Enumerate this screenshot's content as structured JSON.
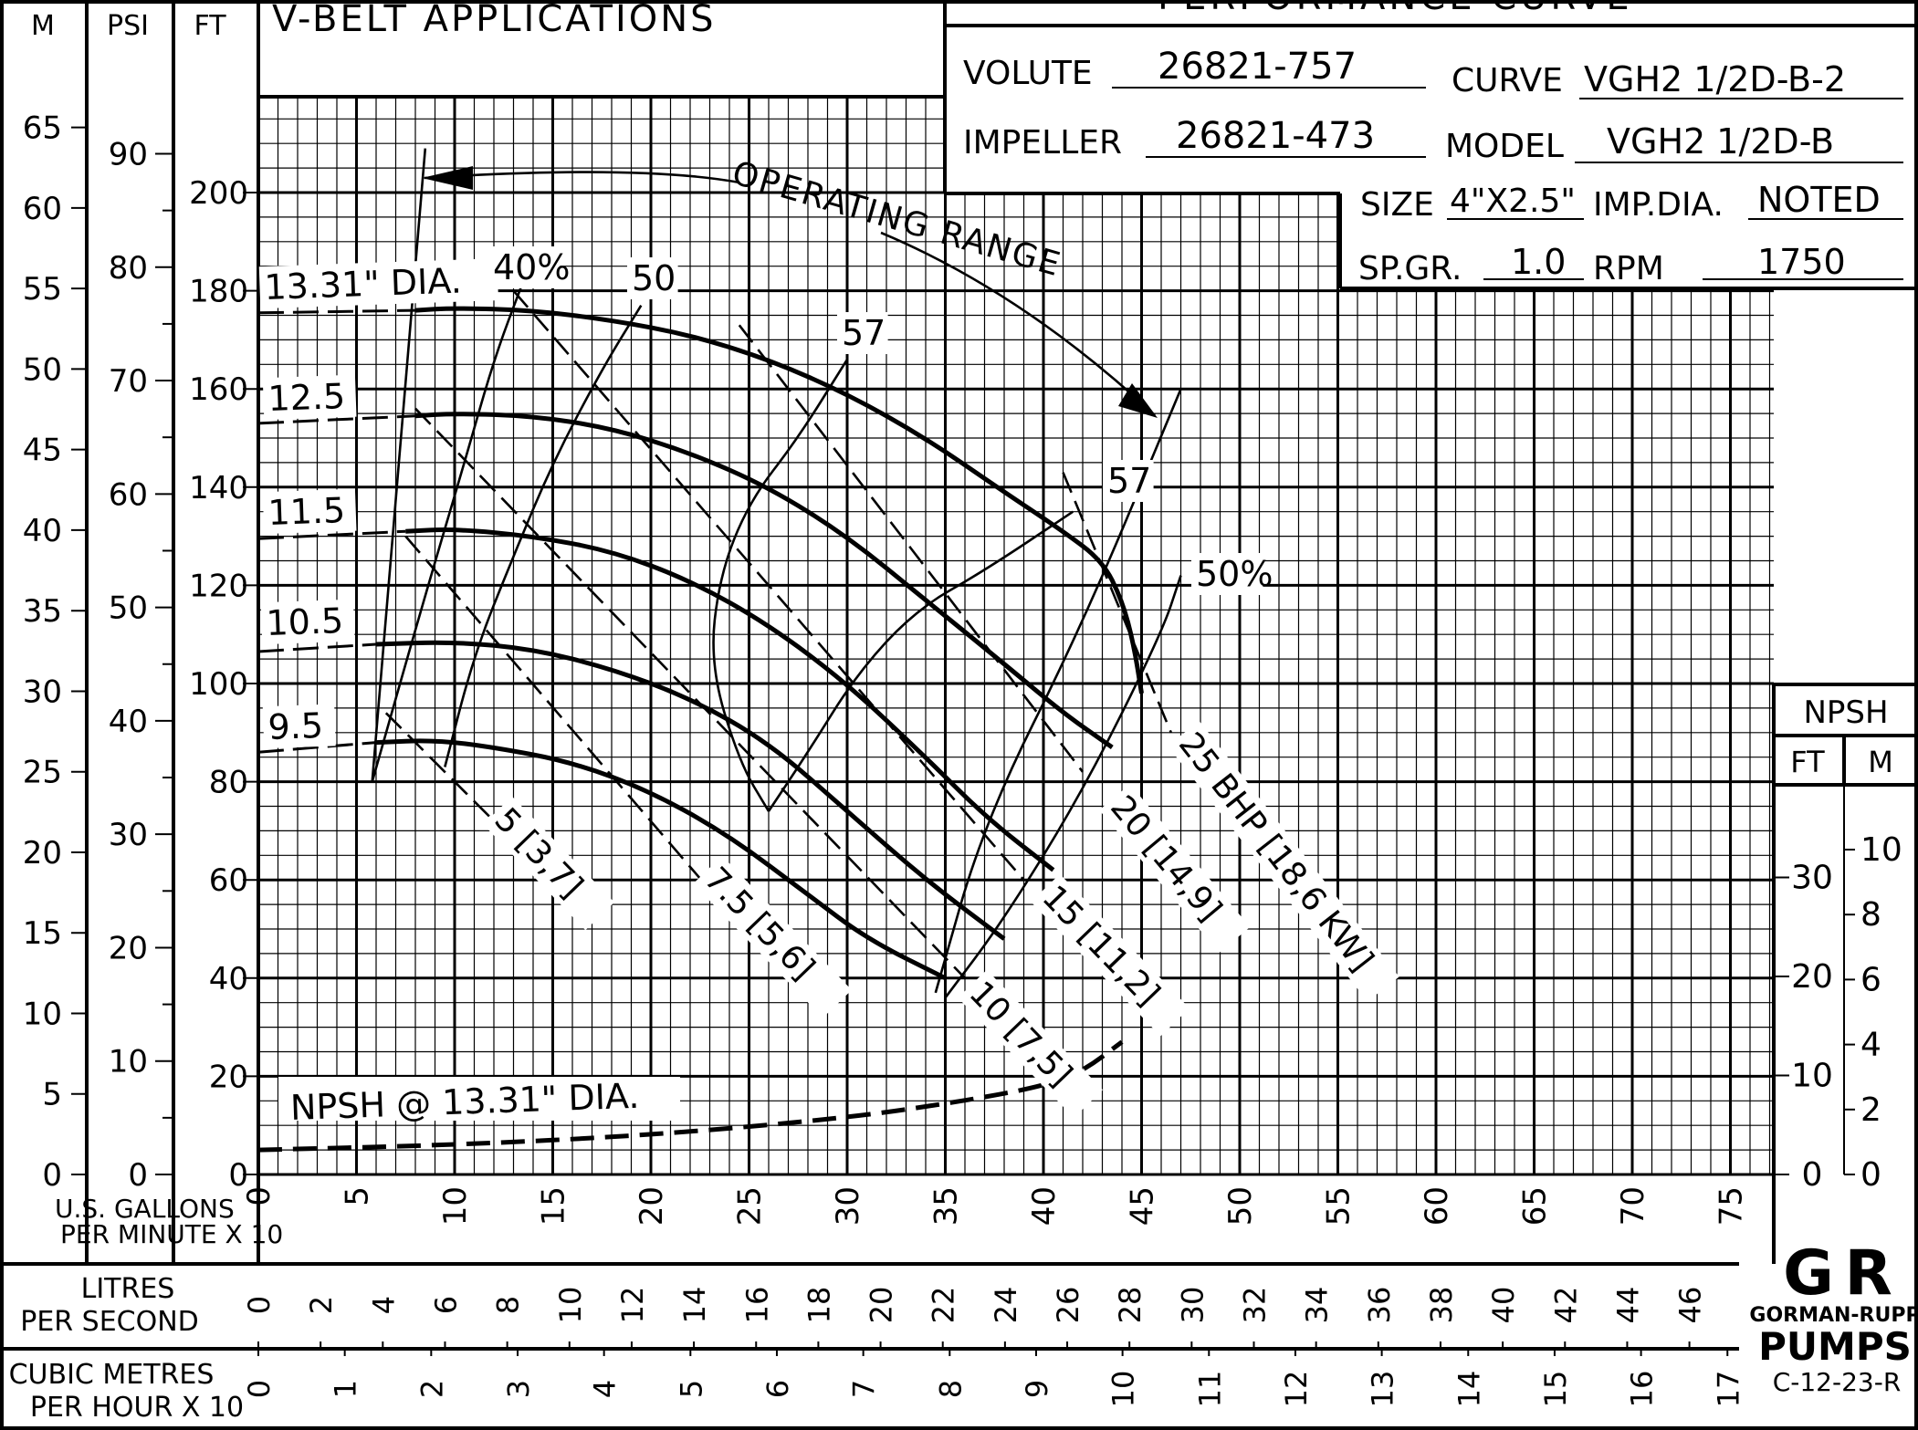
{
  "header": {
    "application": "V-BELT APPLICATIONS",
    "curve_title": "PERFORMANCE CURVE",
    "volute_label": "VOLUTE",
    "volute": "26821-757",
    "curve_label": "CURVE",
    "curve": "VGH2 1/2D-B-2",
    "impeller_label": "IMPELLER",
    "impeller": "26821-473",
    "model_label": "MODEL",
    "model": "VGH2 1/2D-B",
    "size_label": "SIZE",
    "size": "4\"X2.5\"",
    "impdia_label": "IMP.DIA.",
    "impdia": "NOTED",
    "spgr_label": "SP.GR.",
    "spgr": "1.0",
    "rpm_label": "RPM",
    "rpm": "1750"
  },
  "axes": {
    "m_label": "M",
    "psi_label": "PSI",
    "ft_label": "FT",
    "npsh_header": "NPSH",
    "npsh_ft_label": "FT",
    "npsh_m_label": "M",
    "gpm_label_1": "U.S. GALLONS",
    "gpm_label_2": "PER MINUTE X 10",
    "lps_label_1": "LITRES",
    "lps_label_2": "PER SECOND",
    "cmh_label_1": "CUBIC METRES",
    "cmh_label_2": "PER HOUR X 10",
    "x_ticks": [
      "0",
      "5",
      "10",
      "15",
      "20",
      "25",
      "30",
      "35",
      "40",
      "45",
      "50",
      "55",
      "60",
      "65",
      "70",
      "75"
    ],
    "ft_ticks": [
      "0",
      "20",
      "40",
      "60",
      "80",
      "100",
      "120",
      "140",
      "160",
      "180",
      "200"
    ],
    "psi_ticks": [
      "0",
      "10",
      "20",
      "30",
      "40",
      "50",
      "60",
      "70",
      "80",
      "90"
    ],
    "m_ticks": [
      "0",
      "5",
      "10",
      "15",
      "20",
      "25",
      "30",
      "35",
      "40",
      "45",
      "50",
      "55",
      "60",
      "65"
    ],
    "npsh_ft_ticks": [
      "0",
      "10",
      "20",
      "30"
    ],
    "npsh_m_ticks": [
      "0",
      "2",
      "4",
      "6",
      "8",
      "10"
    ],
    "lps_ticks": [
      "0",
      "2",
      "4",
      "6",
      "8",
      "10",
      "12",
      "14",
      "16",
      "18",
      "20",
      "22",
      "24",
      "26",
      "28",
      "30",
      "32",
      "34",
      "36",
      "38",
      "40",
      "42",
      "44",
      "46"
    ],
    "cmh_ticks": [
      "0",
      "1",
      "2",
      "3",
      "4",
      "5",
      "6",
      "7",
      "8",
      "9",
      "10",
      "11",
      "12",
      "13",
      "14",
      "15",
      "16",
      "17"
    ]
  },
  "logo": {
    "top": "G R",
    "name": "GORMAN-RUPP",
    "bottom": "PUMPS",
    "code": "C-12-23-R"
  },
  "chart_data": {
    "type": "line",
    "xlabel": "U.S. GALLONS PER MINUTE X 10",
    "ylabel": "FT",
    "xlim": [
      0,
      77
    ],
    "ylim": [
      0,
      220
    ],
    "head_curves": [
      {
        "name": "13.31\" DIA.",
        "x": [
          8,
          10,
          14,
          18,
          22,
          26,
          30,
          34,
          38,
          41,
          43,
          44,
          44.6,
          45
        ],
        "y": [
          176,
          176.5,
          176,
          174,
          171,
          166,
          159,
          150,
          139,
          131,
          125,
          117,
          108,
          98
        ]
      },
      {
        "name": "12.5",
        "x": [
          8,
          10,
          14,
          18,
          22,
          26,
          30,
          34,
          38,
          41,
          43.5
        ],
        "y": [
          154.5,
          155,
          154.5,
          152,
          147,
          140,
          130,
          117,
          104,
          94,
          87
        ]
      },
      {
        "name": "11.5",
        "x": [
          7.5,
          10,
          14,
          18,
          22,
          26,
          30,
          34,
          37,
          40.5
        ],
        "y": [
          131,
          131.5,
          130,
          127,
          121,
          112,
          100,
          85,
          73,
          62
        ]
      },
      {
        "name": "10.5",
        "x": [
          6,
          10,
          14,
          18,
          22,
          26,
          30,
          34,
          38
        ],
        "y": [
          108,
          108.5,
          107,
          103,
          97,
          88,
          74,
          60,
          48
        ]
      },
      {
        "name": "9.5",
        "x": [
          6,
          9,
          12,
          16,
          20,
          24,
          28,
          31,
          35
        ],
        "y": [
          88,
          88.5,
          87,
          84,
          78,
          69,
          57,
          48,
          40
        ]
      }
    ],
    "dia_extensions": [
      {
        "x": [
          0,
          8
        ],
        "y": [
          175.5,
          176
        ]
      },
      {
        "x": [
          0,
          8
        ],
        "y": [
          153,
          154.5
        ]
      },
      {
        "x": [
          0,
          7.5
        ],
        "y": [
          129.5,
          131
        ]
      },
      {
        "x": [
          0,
          6
        ],
        "y": [
          106.5,
          108
        ]
      },
      {
        "x": [
          0,
          6
        ],
        "y": [
          86,
          88
        ]
      }
    ],
    "efficiency_lines": [
      {
        "name": "40%",
        "x": [
          5.8,
          8.5,
          10.5,
          12,
          13.5
        ],
        "y": [
          80,
          118,
          145,
          166,
          182
        ]
      },
      {
        "name": "50",
        "x": [
          9.5,
          11,
          13,
          15,
          17.5,
          19.5
        ],
        "y": [
          83,
          106,
          126,
          145,
          164,
          177
        ]
      },
      {
        "name": "57",
        "x": [
          26,
          24.5,
          23,
          23.5,
          25,
          27.5,
          30
        ],
        "y": [
          74,
          84,
          104,
          122,
          137,
          150,
          166
        ]
      },
      {
        "name": "57",
        "x": [
          26,
          28,
          30.5,
          33.5,
          37,
          41.5
        ],
        "y": [
          74,
          86,
          102,
          115,
          123,
          135
        ]
      },
      {
        "name": "50%",
        "x": [
          35,
          38,
          42,
          46,
          47
        ],
        "y": [
          36,
          52,
          78,
          110,
          122
        ]
      }
    ],
    "bhp_lines": [
      {
        "name": "5 [3,7]",
        "x": [
          6.5,
          12
        ],
        "y": [
          94,
          72
        ]
      },
      {
        "name": "7.5 [5,6]",
        "x": [
          7.5,
          23
        ],
        "y": [
          130,
          58
        ]
      },
      {
        "name": "10 [7,5]",
        "x": [
          8,
          36
        ],
        "y": [
          156,
          40
        ]
      },
      {
        "name": "15 [11,2]",
        "x": [
          13,
          39
        ],
        "y": [
          180,
          60
        ]
      },
      {
        "name": "20 [14,9]",
        "x": [
          24.5,
          42
        ],
        "y": [
          173,
          82
        ]
      },
      {
        "name": "25 BHP [18,6 KW]",
        "x": [
          41,
          46.5
        ],
        "y": [
          143,
          90
        ]
      }
    ],
    "operating_range": [
      {
        "x": [
          5.8,
          8.5
        ],
        "y": [
          80,
          209
        ]
      },
      {
        "x": [
          47,
          42,
          37,
          34.5
        ],
        "y": [
          160,
          112,
          72,
          37
        ]
      }
    ],
    "npsh_curve": {
      "name": "NPSH @ 13.31\" DIA.",
      "x": [
        0,
        10,
        20,
        30,
        36,
        40,
        42,
        44
      ],
      "y": [
        5,
        6,
        8,
        11.5,
        15,
        18,
        21,
        27
      ]
    },
    "annotation": "OPERATING RANGE"
  }
}
